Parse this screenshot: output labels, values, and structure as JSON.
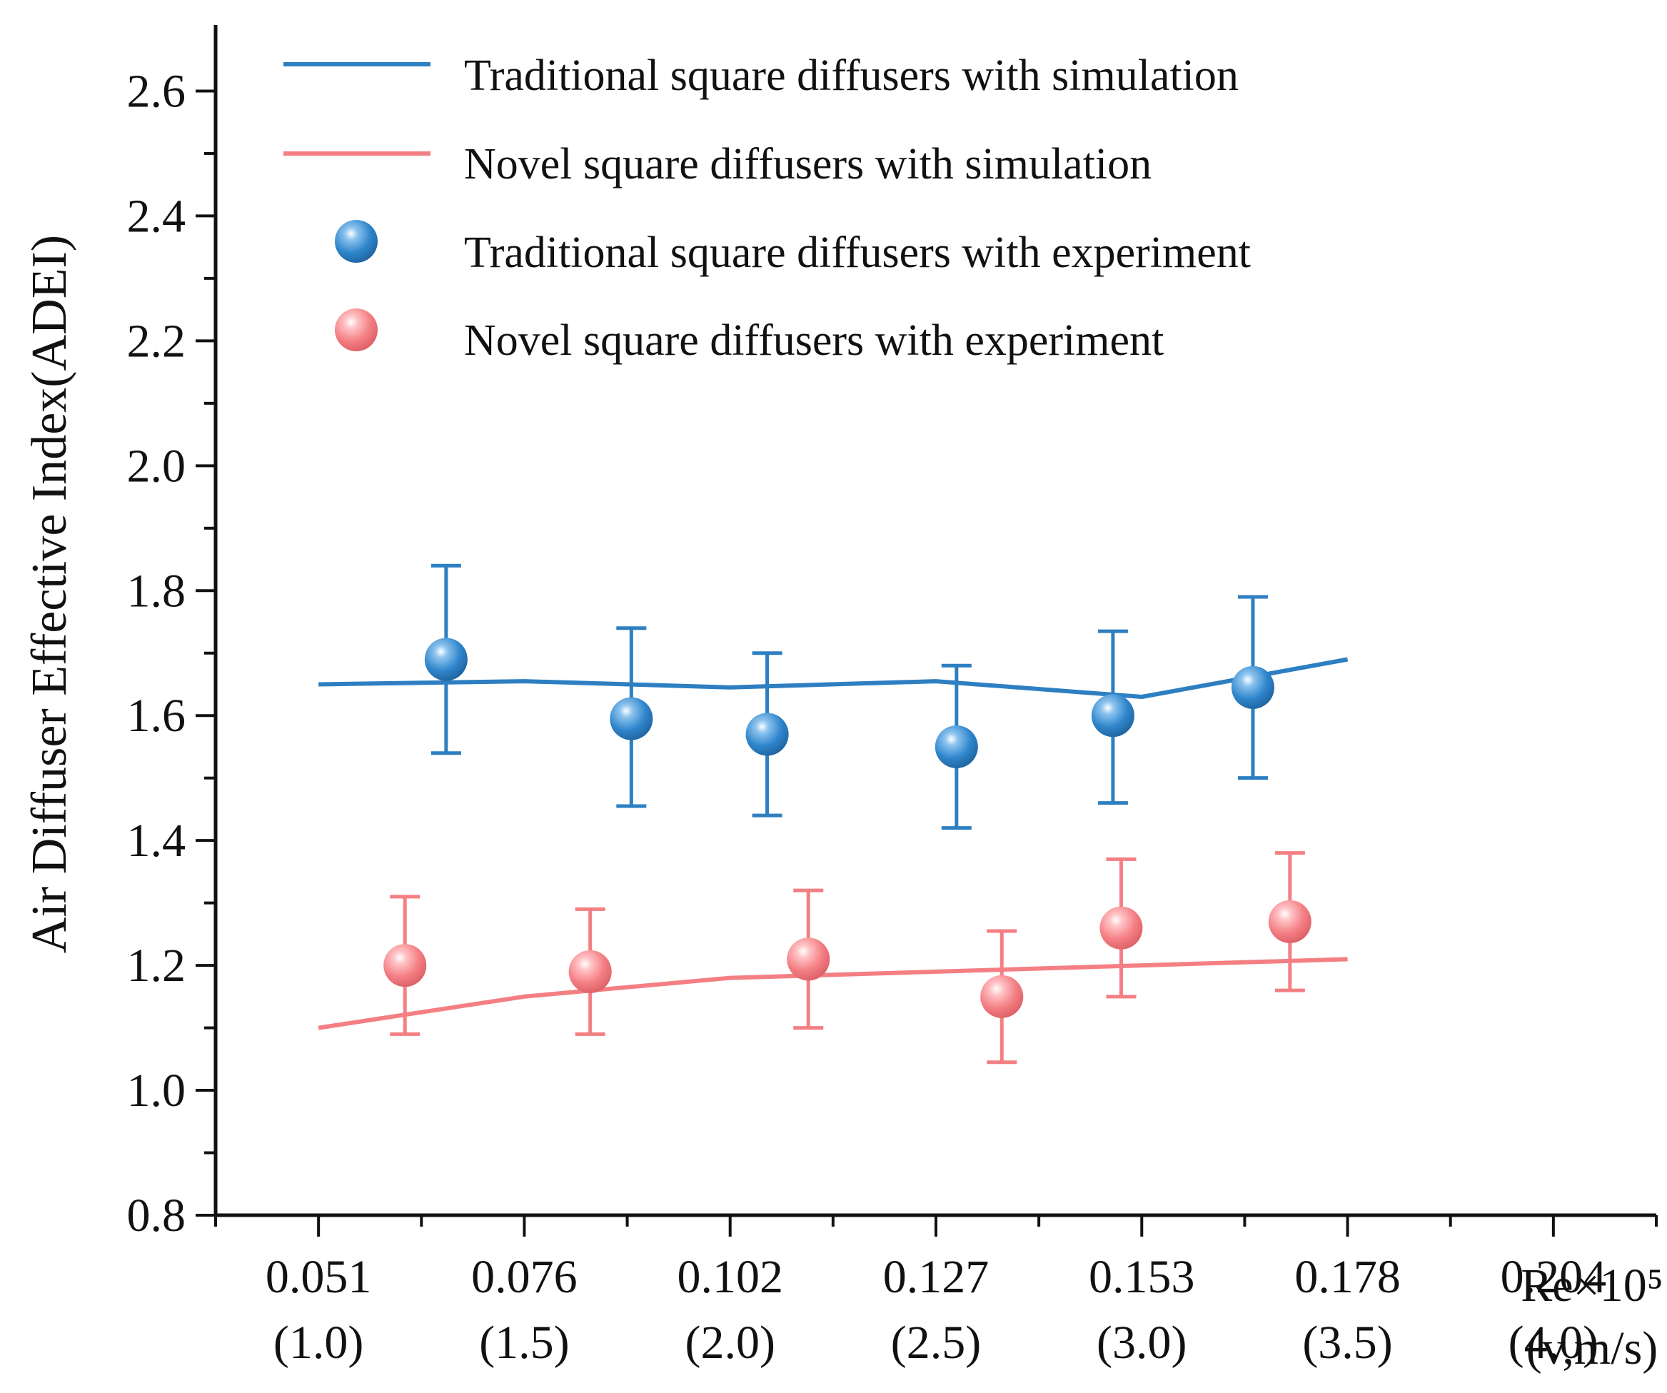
{
  "chart_data": {
    "type": "line",
    "ylabel": "Air Diffuser Effective Index(ADEI)",
    "xlabel_lines": [
      "Re×10⁵",
      "(v,m/s)"
    ],
    "ylim": [
      0.8,
      2.7
    ],
    "yticks": [
      "0.8",
      "1.0",
      "1.2",
      "1.4",
      "1.6",
      "1.8",
      "2.0",
      "2.2",
      "2.4",
      "2.6"
    ],
    "xlim": [
      0.75,
      4.25
    ],
    "xticks": [
      {
        "x": 1.0,
        "top": "0.051",
        "bottom": "(1.0)"
      },
      {
        "x": 1.5,
        "top": "0.076",
        "bottom": "(1.5)"
      },
      {
        "x": 2.0,
        "top": "0.102",
        "bottom": "(2.0)"
      },
      {
        "x": 2.5,
        "top": "0.127",
        "bottom": "(2.5)"
      },
      {
        "x": 3.0,
        "top": "0.153",
        "bottom": "(3.0)"
      },
      {
        "x": 3.5,
        "top": "0.178",
        "bottom": "(3.5)"
      },
      {
        "x": 4.0,
        "top": "0.204",
        "bottom": "(4.0)"
      }
    ],
    "series": [
      {
        "name": "Traditional square diffusers with simulation",
        "kind": "line",
        "color": "#2d7fc1",
        "x": [
          1.0,
          1.5,
          2.0,
          2.5,
          3.0,
          3.5
        ],
        "y": [
          1.65,
          1.655,
          1.645,
          1.655,
          1.63,
          1.69
        ]
      },
      {
        "name": "Novel square diffusers with simulation",
        "kind": "line",
        "color": "#f47f83",
        "x": [
          1.0,
          1.5,
          2.0,
          2.5,
          3.0,
          3.5
        ],
        "y": [
          1.1,
          1.15,
          1.18,
          1.19,
          1.2,
          1.21
        ]
      },
      {
        "name": "Traditional square diffusers with experiment",
        "kind": "scatter",
        "color": "#2d7fc1",
        "x": [
          1.31,
          1.76,
          2.09,
          2.55,
          2.93,
          3.27
        ],
        "y": [
          1.69,
          1.595,
          1.57,
          1.55,
          1.6,
          1.645
        ],
        "err_low": [
          1.54,
          1.455,
          1.44,
          1.42,
          1.46,
          1.5
        ],
        "err_high": [
          1.84,
          1.74,
          1.7,
          1.68,
          1.735,
          1.79
        ]
      },
      {
        "name": "Novel square diffusers with experiment",
        "kind": "scatter",
        "color": "#f47f83",
        "x": [
          1.21,
          1.66,
          2.19,
          2.66,
          2.95,
          3.36
        ],
        "y": [
          1.2,
          1.19,
          1.21,
          1.15,
          1.26,
          1.27
        ],
        "err_low": [
          1.09,
          1.09,
          1.1,
          1.045,
          1.15,
          1.16
        ],
        "err_high": [
          1.31,
          1.29,
          1.32,
          1.255,
          1.37,
          1.38
        ]
      }
    ],
    "legend_position": "top-left"
  }
}
